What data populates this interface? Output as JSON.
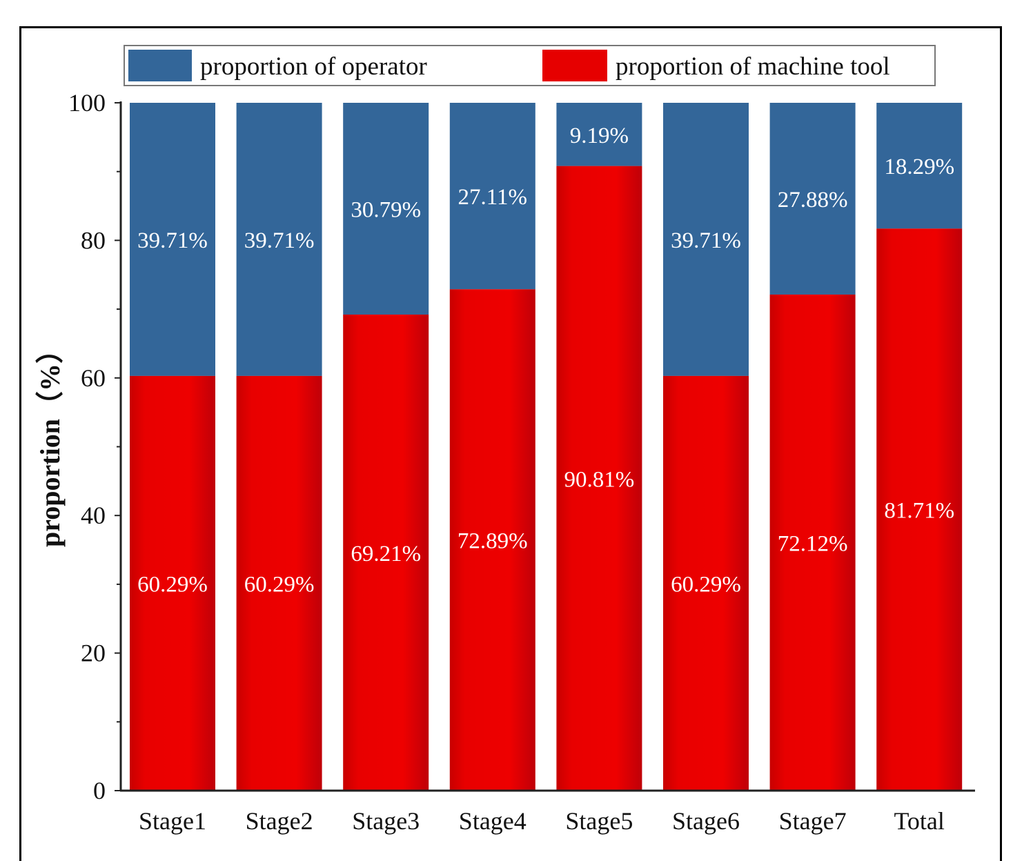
{
  "chart_data": {
    "type": "bar",
    "stacked": true,
    "title": "",
    "xlabel": "",
    "ylabel": "proportion（%）",
    "ylim": [
      0,
      100
    ],
    "yticks": [
      "0",
      "20",
      "40",
      "60",
      "80",
      "100"
    ],
    "categories": [
      "Stage1",
      "Stage2",
      "Stage3",
      "Stage4",
      "Stage5",
      "Stage6",
      "Stage7",
      "Total"
    ],
    "series": [
      {
        "name": "proportion of machine tool",
        "color": "#e60000",
        "values": [
          60.29,
          60.29,
          69.21,
          72.89,
          90.81,
          60.29,
          72.12,
          81.71
        ],
        "labels": [
          "60.29%",
          "60.29%",
          "69.21%",
          "72.89%",
          "90.81%",
          "60.29%",
          "72.12%",
          "81.71%"
        ]
      },
      {
        "name": "proportion of operator",
        "color": "#336699",
        "values": [
          39.71,
          39.71,
          30.79,
          27.11,
          9.19,
          39.71,
          27.88,
          18.29
        ],
        "labels": [
          "39.71%",
          "39.71%",
          "30.79%",
          "27.11%",
          "9.19%",
          "39.71%",
          "27.88%",
          "18.29%"
        ]
      }
    ],
    "legend": {
      "position": "top",
      "entries": [
        "proportion of operator",
        "proportion of machine tool"
      ]
    }
  }
}
